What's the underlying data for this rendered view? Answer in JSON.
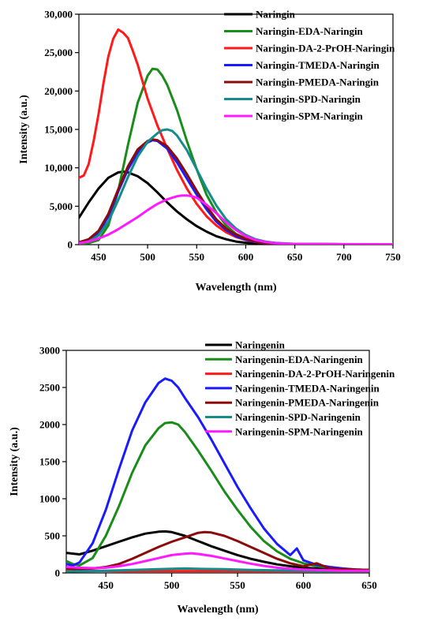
{
  "chart_data": [
    {
      "type": "line",
      "title": "",
      "xlabel": "Wavelength (nm)",
      "ylabel": "Intensity (a.u.)",
      "xlim": [
        430,
        750
      ],
      "ylim": [
        0,
        30000
      ],
      "x_ticks": [
        450,
        500,
        550,
        600,
        650,
        700,
        750
      ],
      "y_ticks": [
        0,
        5000,
        10000,
        15000,
        20000,
        25000,
        30000
      ],
      "x_tick_labels": [
        "450",
        "500",
        "550",
        "600",
        "650",
        "700",
        "750"
      ],
      "y_tick_labels": [
        "0",
        "5,000",
        "10,000",
        "15,000",
        "20,000",
        "25,000",
        "30,000"
      ],
      "legend_position": "top-right",
      "grid": false,
      "series": [
        {
          "name": "Naringin",
          "color": "#000000",
          "x": [
            430,
            440,
            450,
            460,
            470,
            475,
            480,
            490,
            500,
            510,
            520,
            530,
            540,
            550,
            560,
            570,
            580,
            590,
            600,
            610,
            620,
            630,
            640,
            650,
            700,
            750
          ],
          "y": [
            3500,
            5500,
            7300,
            8700,
            9400,
            9500,
            9400,
            8900,
            8000,
            6800,
            5500,
            4300,
            3300,
            2400,
            1700,
            1100,
            700,
            400,
            250,
            150,
            100,
            80,
            70,
            60,
            50,
            50
          ]
        },
        {
          "name": "Naringin-EDA-Naringin",
          "color": "#1a8c1a",
          "x": [
            430,
            440,
            450,
            460,
            470,
            480,
            490,
            500,
            505,
            510,
            515,
            520,
            530,
            540,
            550,
            560,
            570,
            580,
            590,
            600,
            610,
            620,
            630,
            640,
            650,
            700,
            750
          ],
          "y": [
            100,
            200,
            600,
            2500,
            7000,
            13000,
            18500,
            22000,
            22900,
            22800,
            22000,
            20800,
            17500,
            13500,
            9800,
            6500,
            4200,
            2500,
            1400,
            800,
            450,
            280,
            180,
            120,
            80,
            50,
            50
          ]
        },
        {
          "name": "Naringin-DA-2-PrOH-Naringin",
          "color": "#ff1a1a",
          "x": [
            430,
            435,
            440,
            445,
            450,
            455,
            460,
            465,
            470,
            475,
            480,
            485,
            490,
            495,
            500,
            510,
            520,
            530,
            540,
            550,
            560,
            570,
            580,
            590,
            600,
            610,
            620,
            630,
            640,
            650,
            700,
            750
          ],
          "y": [
            8700,
            9000,
            10500,
            13500,
            17000,
            21000,
            24500,
            26800,
            28000,
            27600,
            26900,
            25200,
            23400,
            21200,
            19000,
            15500,
            12500,
            9700,
            7300,
            5300,
            3700,
            2500,
            1600,
            1000,
            600,
            350,
            200,
            130,
            90,
            70,
            50,
            50
          ]
        },
        {
          "name": "Naringin-TMEDA-Naringin",
          "color": "#1a1aff",
          "x": [
            430,
            440,
            450,
            460,
            470,
            480,
            490,
            500,
            505,
            510,
            520,
            530,
            540,
            550,
            560,
            570,
            580,
            590,
            600,
            610,
            620,
            630,
            640,
            650,
            700,
            750
          ],
          "y": [
            200,
            500,
            1500,
            3700,
            6900,
            9800,
            12000,
            13300,
            13600,
            13500,
            12500,
            10700,
            8600,
            6500,
            4600,
            3000,
            1900,
            1100,
            650,
            380,
            230,
            150,
            100,
            80,
            50,
            50
          ]
        },
        {
          "name": "Naringin-PMEDA-Naringin",
          "color": "#8b0a0a",
          "x": [
            430,
            440,
            450,
            460,
            470,
            480,
            490,
            500,
            505,
            510,
            520,
            530,
            540,
            550,
            560,
            570,
            580,
            590,
            600,
            610,
            620,
            630,
            640,
            650,
            700,
            750
          ],
          "y": [
            300,
            700,
            1800,
            4000,
            7200,
            10200,
            12400,
            13500,
            13700,
            13600,
            12800,
            11200,
            9200,
            7000,
            5000,
            3300,
            2100,
            1300,
            750,
            430,
            260,
            170,
            110,
            80,
            50,
            50
          ]
        },
        {
          "name": "Naringin-SPD-Naringin",
          "color": "#148c8c",
          "x": [
            430,
            440,
            450,
            460,
            470,
            480,
            490,
            500,
            510,
            515,
            520,
            525,
            530,
            540,
            550,
            560,
            570,
            580,
            590,
            600,
            610,
            620,
            630,
            640,
            650,
            700,
            750
          ],
          "y": [
            200,
            400,
            1200,
            3000,
            5800,
            8800,
            11500,
            13400,
            14500,
            14900,
            15000,
            14800,
            14200,
            12300,
            9800,
            7300,
            5100,
            3300,
            2100,
            1250,
            700,
            400,
            240,
            150,
            100,
            50,
            50
          ]
        },
        {
          "name": "Naringin-SPM-Naringin",
          "color": "#ff1aff",
          "x": [
            430,
            440,
            450,
            460,
            470,
            480,
            490,
            500,
            510,
            520,
            530,
            535,
            540,
            545,
            550,
            560,
            570,
            580,
            590,
            600,
            610,
            620,
            630,
            640,
            650,
            700,
            750
          ],
          "y": [
            200,
            400,
            800,
            1300,
            2000,
            2800,
            3600,
            4500,
            5300,
            5900,
            6300,
            6400,
            6400,
            6300,
            6100,
            5200,
            4100,
            2900,
            1900,
            1100,
            600,
            350,
            200,
            130,
            90,
            60,
            50
          ]
        }
      ]
    },
    {
      "type": "line",
      "title": "",
      "xlabel": "Wavelength (nm)",
      "ylabel": "Intensity (a.u.)",
      "xlim": [
        420,
        650
      ],
      "ylim": [
        0,
        3000
      ],
      "x_ticks": [
        450,
        500,
        550,
        600,
        650
      ],
      "y_ticks": [
        0,
        500,
        1000,
        1500,
        2000,
        2500,
        3000
      ],
      "x_tick_labels": [
        "450",
        "500",
        "550",
        "600",
        "650"
      ],
      "y_tick_labels": [
        "0",
        "500",
        "1000",
        "1500",
        "2000",
        "2500",
        "3000"
      ],
      "legend_position": "top-right",
      "grid": false,
      "series": [
        {
          "name": "Naringenin",
          "color": "#000000",
          "x": [
            420,
            430,
            440,
            450,
            460,
            470,
            480,
            490,
            495,
            500,
            510,
            520,
            530,
            540,
            550,
            560,
            570,
            580,
            590,
            600,
            610,
            620,
            630,
            640,
            650
          ],
          "y": [
            270,
            250,
            300,
            360,
            420,
            480,
            530,
            555,
            560,
            550,
            500,
            430,
            360,
            300,
            240,
            190,
            150,
            115,
            90,
            70,
            60,
            50,
            45,
            40,
            40
          ]
        },
        {
          "name": "Naringenin-EDA-Naringenin",
          "color": "#1a8c1a",
          "x": [
            420,
            425,
            430,
            440,
            450,
            460,
            470,
            480,
            490,
            495,
            500,
            505,
            510,
            520,
            530,
            540,
            550,
            560,
            570,
            580,
            590,
            600,
            610,
            620,
            630,
            640,
            650
          ],
          "y": [
            160,
            120,
            100,
            200,
            500,
            900,
            1350,
            1720,
            1950,
            2020,
            2030,
            2000,
            1900,
            1650,
            1380,
            1100,
            850,
            620,
            430,
            290,
            190,
            130,
            90,
            70,
            55,
            45,
            40
          ]
        },
        {
          "name": "Naringenin-DA-2-PrOH-Naringenin",
          "color": "#ff1a1a",
          "x": [
            420,
            440,
            460,
            480,
            500,
            520,
            540,
            560,
            580,
            600,
            620,
            640,
            650
          ],
          "y": [
            40,
            30,
            25,
            25,
            25,
            25,
            25,
            25,
            25,
            25,
            25,
            25,
            25
          ]
        },
        {
          "name": "Naringenin-TMEDA-Naringenin",
          "color": "#1a1aff",
          "x": [
            420,
            425,
            430,
            440,
            450,
            460,
            470,
            480,
            490,
            495,
            500,
            505,
            510,
            520,
            530,
            540,
            550,
            560,
            570,
            580,
            590,
            595,
            600,
            610,
            620,
            630,
            640,
            650
          ],
          "y": [
            120,
            100,
            140,
            400,
            850,
            1400,
            1920,
            2300,
            2560,
            2620,
            2590,
            2500,
            2360,
            2100,
            1800,
            1480,
            1160,
            870,
            600,
            390,
            240,
            330,
            170,
            110,
            80,
            60,
            45,
            40
          ]
        },
        {
          "name": "Naringenin-PMEDA-Naringenin",
          "color": "#8b0a0a",
          "x": [
            420,
            430,
            440,
            450,
            460,
            470,
            480,
            490,
            500,
            510,
            520,
            525,
            530,
            540,
            550,
            560,
            570,
            580,
            590,
            600,
            610,
            620,
            630,
            640,
            650
          ],
          "y": [
            60,
            50,
            60,
            80,
            120,
            190,
            270,
            350,
            420,
            480,
            540,
            550,
            545,
            500,
            430,
            350,
            270,
            190,
            130,
            90,
            130,
            60,
            50,
            45,
            40
          ]
        },
        {
          "name": "Naringenin-SPD-Naringenin",
          "color": "#148c8c",
          "x": [
            420,
            440,
            460,
            480,
            500,
            510,
            520,
            540,
            560,
            580,
            600,
            620,
            640,
            650
          ],
          "y": [
            20,
            25,
            35,
            45,
            55,
            60,
            55,
            50,
            40,
            35,
            30,
            25,
            25,
            25
          ]
        },
        {
          "name": "Naringenin-SPM-Naringenin",
          "color": "#ff1aff",
          "x": [
            420,
            430,
            440,
            450,
            460,
            470,
            480,
            490,
            500,
            510,
            515,
            520,
            530,
            540,
            550,
            560,
            570,
            580,
            590,
            600,
            610,
            620,
            630,
            640,
            650
          ],
          "y": [
            80,
            70,
            65,
            70,
            90,
            120,
            160,
            200,
            240,
            260,
            265,
            255,
            230,
            195,
            160,
            125,
            95,
            70,
            55,
            45,
            40,
            35,
            30,
            30,
            30
          ]
        }
      ]
    }
  ]
}
